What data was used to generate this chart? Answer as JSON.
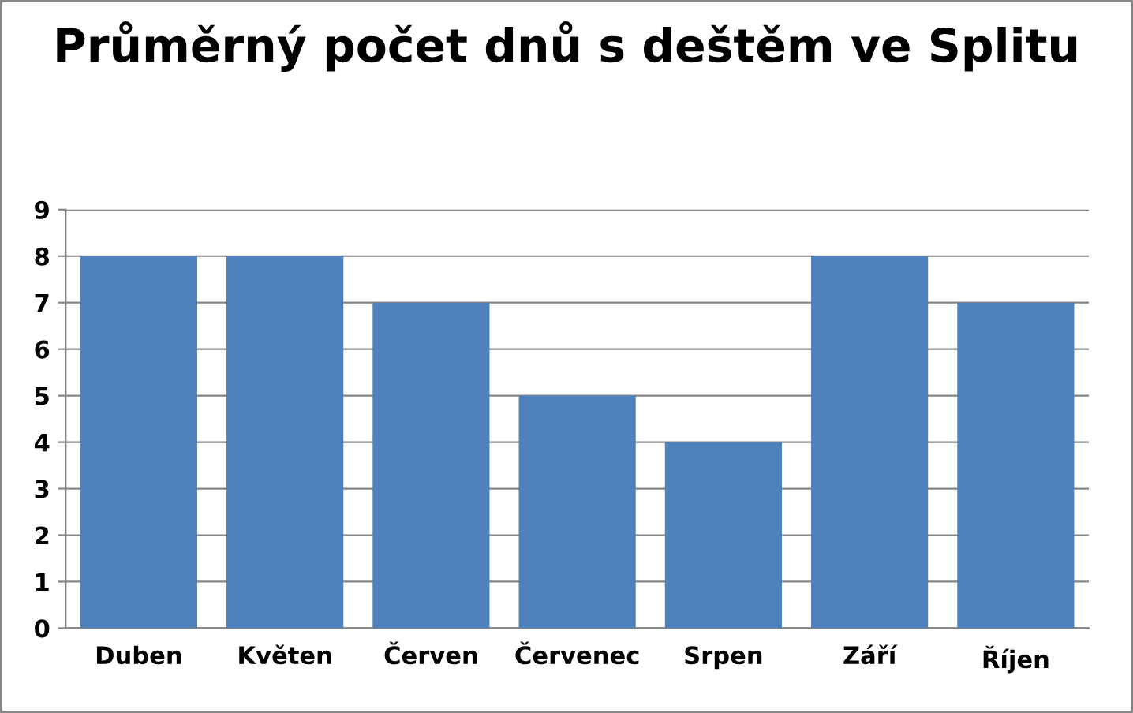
{
  "chart_data": {
    "type": "bar",
    "title": "Průměrný počet dnů s deštěm ve Splitu",
    "categories": [
      "Duben",
      "Květen",
      "Červen",
      "Červenec",
      "Srpen",
      "Září",
      "Říjen"
    ],
    "values": [
      8,
      8,
      7,
      5,
      4,
      8,
      7
    ],
    "color": "#4f81bd",
    "ylim": [
      0,
      9
    ],
    "yticks": [
      0,
      1,
      2,
      3,
      4,
      5,
      6,
      7,
      8,
      9
    ],
    "grid": "y",
    "legend": false
  }
}
